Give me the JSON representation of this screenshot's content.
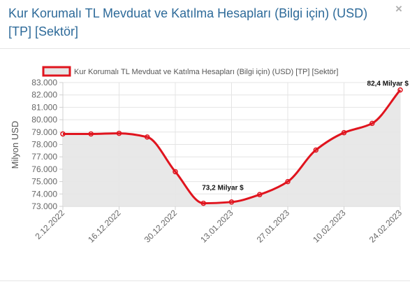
{
  "modal": {
    "title": "Kur Korumalı TL Mevduat ve Katılma Hesapları (Bilgi için) (USD) [TP] [Sektör]",
    "close_label": "×"
  },
  "chart_data": {
    "type": "area",
    "ylabel": "Milyon USD",
    "ylim": [
      73000,
      83000
    ],
    "yticks": [
      "73.000",
      "74.000",
      "75.000",
      "76.000",
      "77.000",
      "78.000",
      "79.000",
      "80.000",
      "81.000",
      "82.000",
      "83.000"
    ],
    "xticks": [
      "2.12.2022",
      "16.12.2022",
      "30.12.2022",
      "13.01.2023",
      "27.01.2023",
      "10.02.2023",
      "24.02.2023"
    ],
    "grid": true,
    "legend_position": "top",
    "series": [
      {
        "name": "Kur Korumalı TL Mevduat ve Katılma Hesapları (Bilgi için) (USD) [TP] [Sektör]",
        "color": "#e0141e",
        "fill": "#e6e6e6",
        "points": [
          {
            "x": "2.12.2022",
            "y": 78850
          },
          {
            "x": "9.12.2022",
            "y": 78850
          },
          {
            "x": "16.12.2022",
            "y": 78900
          },
          {
            "x": "23.12.2022",
            "y": 78600
          },
          {
            "x": "30.12.2022",
            "y": 75800
          },
          {
            "x": "6.01.2023",
            "y": 73250
          },
          {
            "x": "13.01.2023",
            "y": 73350
          },
          {
            "x": "20.01.2023",
            "y": 73950
          },
          {
            "x": "27.01.2023",
            "y": 75000
          },
          {
            "x": "3.02.2023",
            "y": 77550
          },
          {
            "x": "10.02.2023",
            "y": 78950
          },
          {
            "x": "17.02.2023",
            "y": 79700
          },
          {
            "x": "24.02.2023",
            "y": 82400
          }
        ]
      }
    ],
    "annotations": [
      {
        "text": "73,2 Milyar $",
        "x": "6.01.2023",
        "y": 73250
      },
      {
        "text": "82,4 Milyar $",
        "x": "24.02.2023",
        "y": 82400
      }
    ]
  }
}
